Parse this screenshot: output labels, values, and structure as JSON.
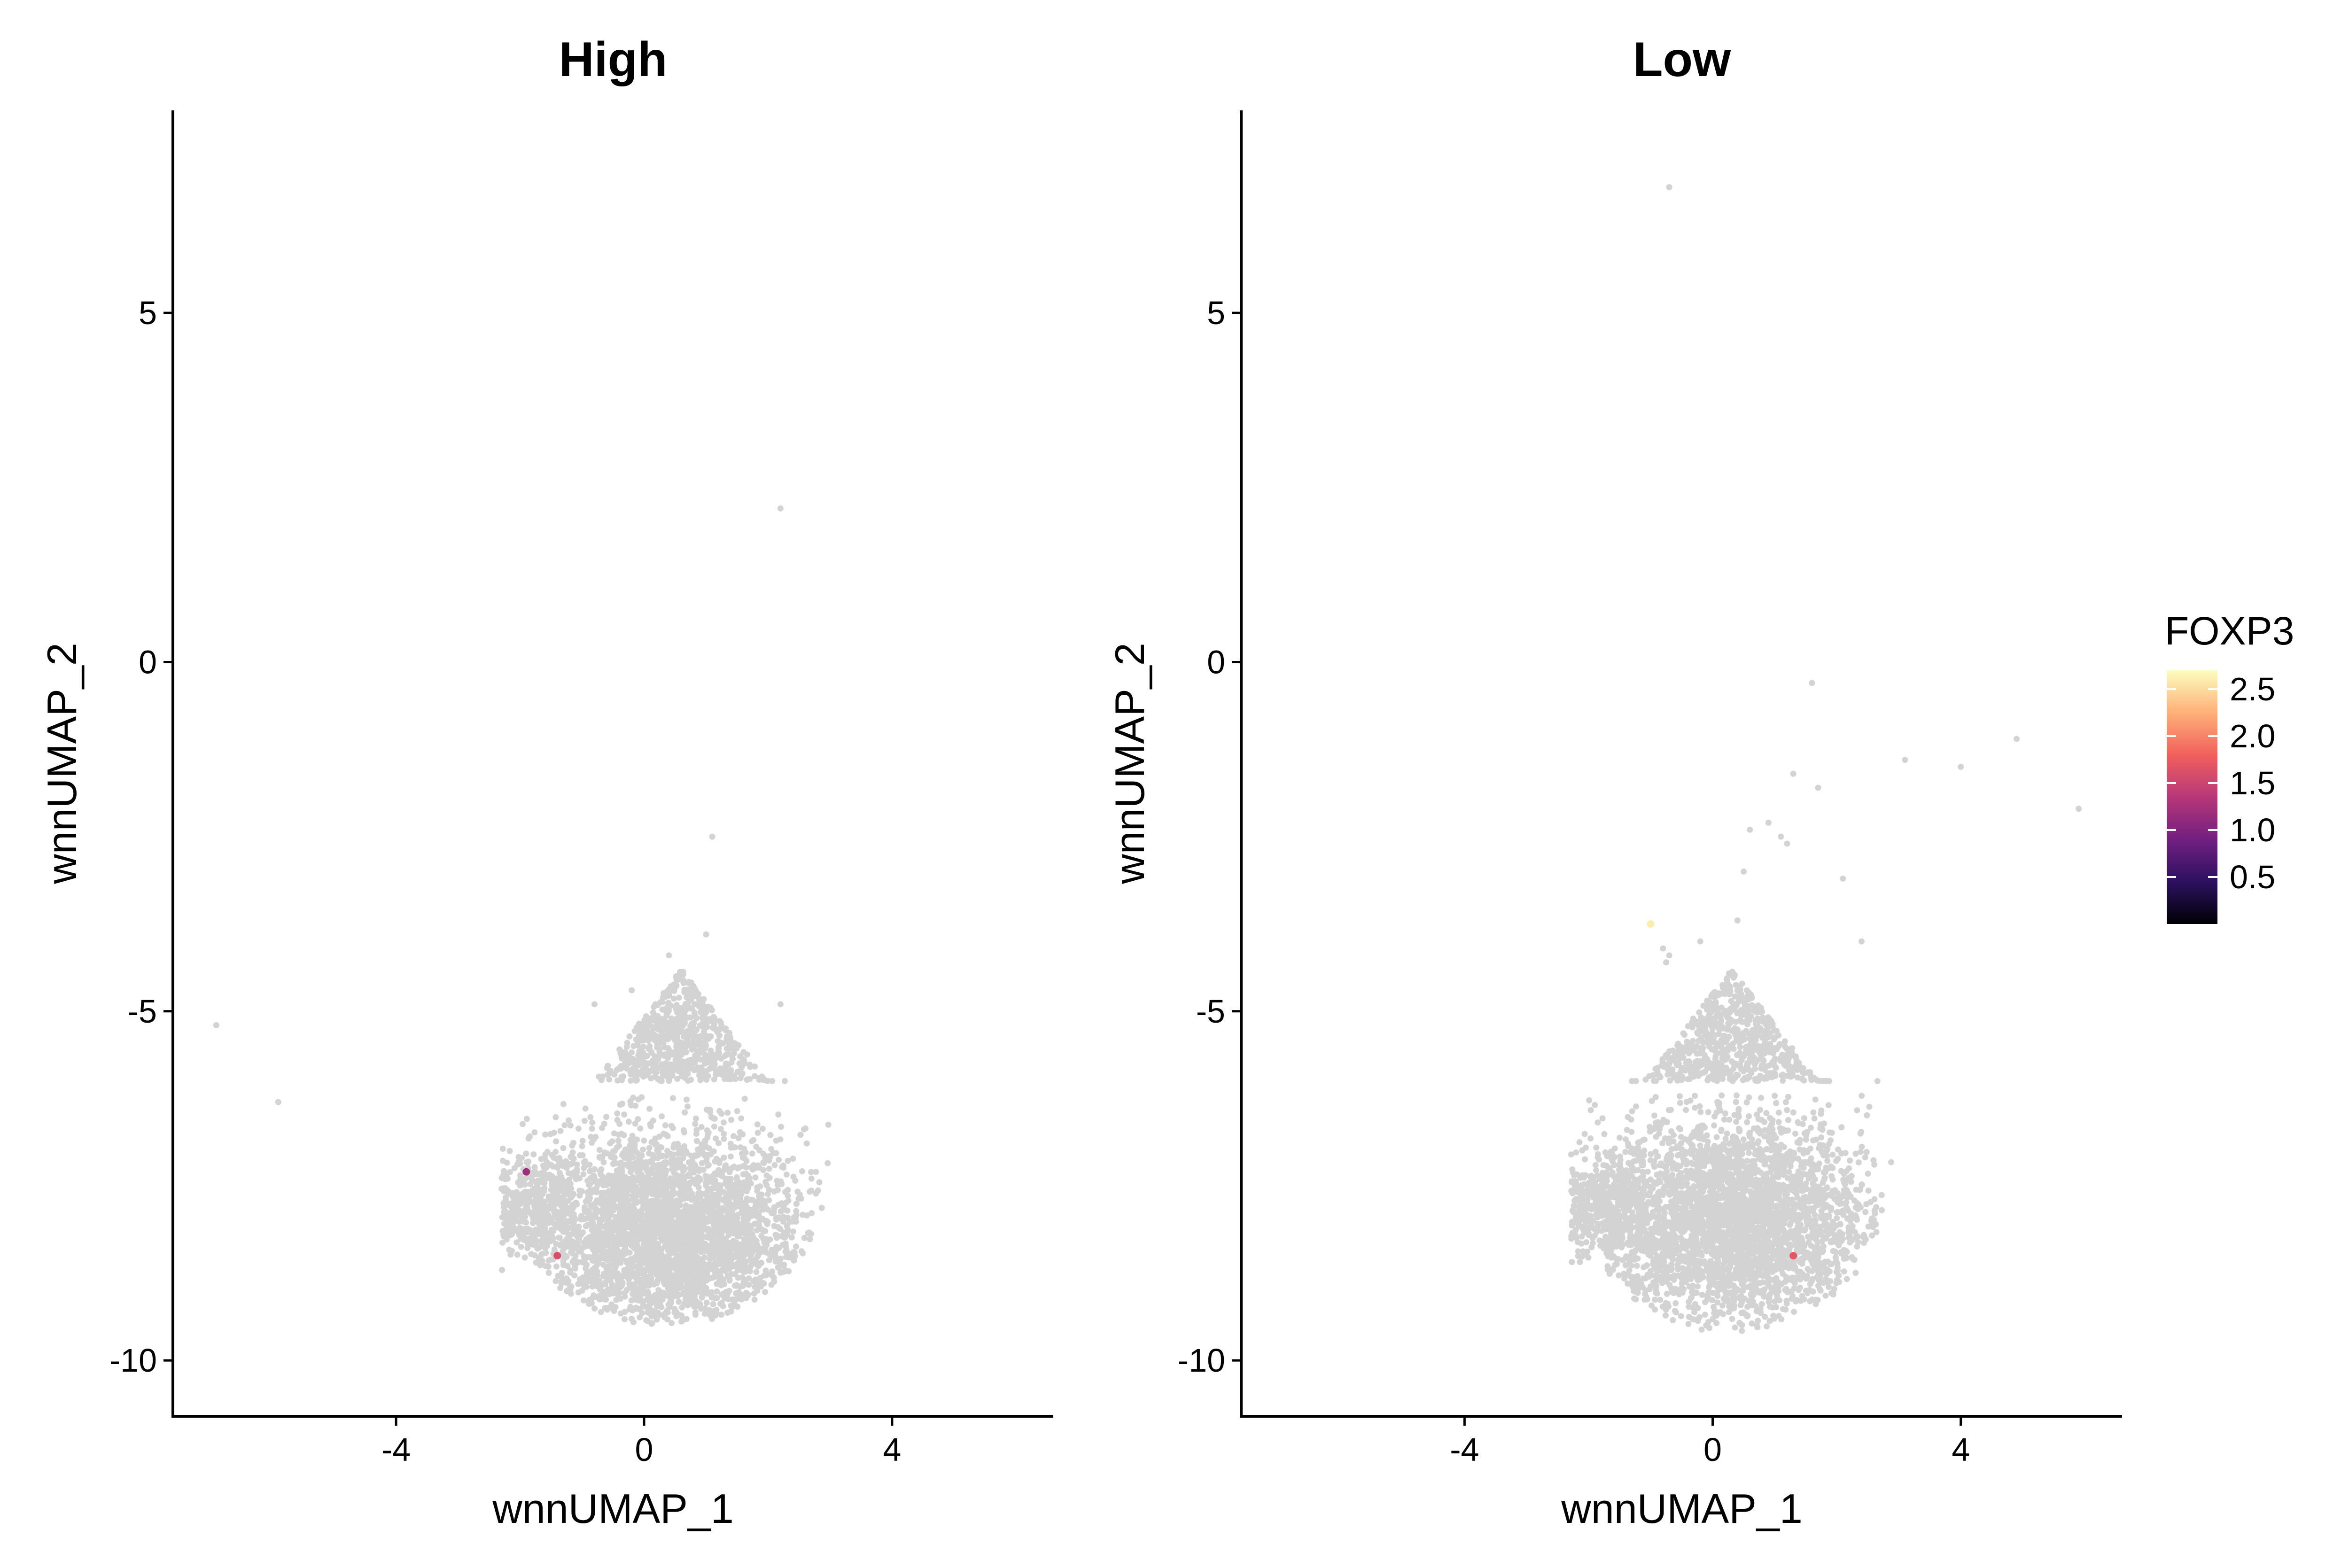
{
  "chart_data": [
    {
      "type": "scatter",
      "title": "High",
      "xlabel": "wnnUMAP_1",
      "ylabel": "wnnUMAP_2",
      "xlim": [
        -7.6,
        6.6
      ],
      "ylim": [
        -10.8,
        7.9
      ],
      "xticks": [
        -4,
        0,
        4
      ],
      "xtick_labels": [
        "-4",
        "0",
        "4"
      ],
      "yticks": [
        5,
        0,
        -5,
        -10
      ],
      "ytick_labels": [
        "5",
        "0",
        "-5",
        "-10"
      ],
      "grid": false,
      "background_point_color": "#d3d3d3",
      "outliers": [
        {
          "x": 2.2,
          "y": 2.2
        },
        {
          "x": -6.9,
          "y": -5.2
        },
        {
          "x": -5.9,
          "y": -6.3
        },
        {
          "x": 1.1,
          "y": -2.5
        },
        {
          "x": 1.0,
          "y": -3.9
        },
        {
          "x": -0.2,
          "y": -4.7
        },
        {
          "x": 0.4,
          "y": -4.2
        },
        {
          "x": 2.2,
          "y": -4.9
        },
        {
          "x": -0.8,
          "y": -4.9
        }
      ],
      "cluster_note": "dense grey cluster of ~thousands of cells",
      "cluster": {
        "x_range": [
          -2.3,
          3.0
        ],
        "y_range": [
          -9.5,
          -4.4
        ],
        "center": [
          0.6,
          -8.2
        ]
      },
      "highlighted_points": [
        {
          "x": -1.9,
          "y": -7.3,
          "value": 1.2
        },
        {
          "x": -1.4,
          "y": -8.5,
          "value": 1.6
        }
      ]
    },
    {
      "type": "scatter",
      "title": "Low",
      "xlabel": "wnnUMAP_1",
      "ylabel": "wnnUMAP_2",
      "xlim": [
        -7.6,
        6.6
      ],
      "ylim": [
        -10.8,
        7.9
      ],
      "xticks": [
        -4,
        0,
        4
      ],
      "xtick_labels": [
        "-4",
        "0",
        "4"
      ],
      "yticks": [
        5,
        0,
        -5,
        -10
      ],
      "ytick_labels": [
        "5",
        "0",
        "-5",
        "-10"
      ],
      "grid": false,
      "background_point_color": "#d3d3d3",
      "outliers": [
        {
          "x": -0.7,
          "y": 6.8
        },
        {
          "x": 1.6,
          "y": -0.3
        },
        {
          "x": 4.9,
          "y": -1.1
        },
        {
          "x": 3.1,
          "y": -1.4
        },
        {
          "x": 4.0,
          "y": -1.5
        },
        {
          "x": 5.9,
          "y": -2.1
        },
        {
          "x": 1.7,
          "y": -1.8
        },
        {
          "x": 1.3,
          "y": -1.6
        },
        {
          "x": 0.6,
          "y": -2.4
        },
        {
          "x": 1.1,
          "y": -2.5
        },
        {
          "x": 0.9,
          "y": -2.3
        },
        {
          "x": 1.2,
          "y": -2.6
        },
        {
          "x": 2.1,
          "y": -3.1
        },
        {
          "x": 0.5,
          "y": -3.0
        },
        {
          "x": 0.4,
          "y": -3.7
        },
        {
          "x": 2.4,
          "y": -4.0
        },
        {
          "x": -0.2,
          "y": -4.0
        },
        {
          "x": -0.8,
          "y": -4.1
        },
        {
          "x": -0.7,
          "y": -4.2
        },
        {
          "x": -0.75,
          "y": -4.3
        }
      ],
      "cluster_note": "dense grey cluster of ~thousands of cells",
      "cluster": {
        "x_range": [
          -2.3,
          2.9
        ],
        "y_range": [
          -9.6,
          -4.4
        ],
        "center": [
          0.3,
          -8.0
        ]
      },
      "highlighted_points": [
        {
          "x": -1.0,
          "y": -3.75,
          "value": 2.6
        },
        {
          "x": 1.3,
          "y": -8.5,
          "value": 1.7
        }
      ]
    }
  ],
  "legend": {
    "title": "FOXP3",
    "min": 0.0,
    "max": 2.7,
    "ticks": [
      2.5,
      2.0,
      1.5,
      1.0,
      0.5
    ],
    "tick_labels": [
      "2.5",
      "2.0",
      "1.5",
      "1.0",
      "0.5"
    ],
    "colormap": [
      "#000004",
      "#2c115f",
      "#721f81",
      "#b73779",
      "#f1605d",
      "#feb078",
      "#fcfdbf"
    ],
    "placement": "right"
  }
}
